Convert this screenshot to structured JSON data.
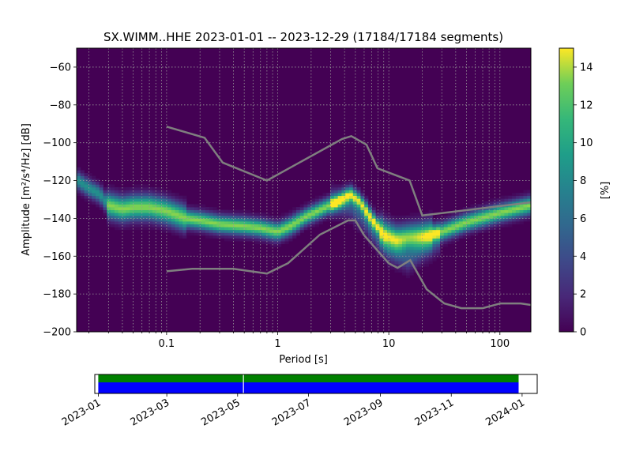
{
  "chart_data": [
    {
      "type": "heatmap",
      "title": "SX.WIMM..HHE   2023-01-01 -- 2023-12-29  (17184/17184 segments)",
      "xlabel": "Period [s]",
      "ylabel": "Amplitude [m²/s⁴/Hz] [dB]",
      "x_scale": "log",
      "xlim": [
        0.0155,
        190
      ],
      "ylim": [
        -200,
        -50
      ],
      "x_ticks": [
        {
          "value": 0.1,
          "label": "0.1"
        },
        {
          "value": 1,
          "label": "1"
        },
        {
          "value": 10,
          "label": "10"
        },
        {
          "value": 100,
          "label": "100"
        }
      ],
      "y_ticks": [
        {
          "value": -60,
          "label": "−60"
        },
        {
          "value": -80,
          "label": "−80"
        },
        {
          "value": -100,
          "label": "−100"
        },
        {
          "value": -120,
          "label": "−120"
        },
        {
          "value": -140,
          "label": "−140"
        },
        {
          "value": -160,
          "label": "−160"
        },
        {
          "value": -180,
          "label": "−180"
        },
        {
          "value": -200,
          "label": "−200"
        }
      ],
      "grid": true,
      "colorscale": "viridis",
      "colorbar": {
        "label": "[%]",
        "range": [
          0,
          15
        ],
        "ticks": [
          {
            "value": 0,
            "label": "0"
          },
          {
            "value": 2,
            "label": "2"
          },
          {
            "value": 4,
            "label": "4"
          },
          {
            "value": 6,
            "label": "6"
          },
          {
            "value": 8,
            "label": "8"
          },
          {
            "value": 10,
            "label": "10"
          },
          {
            "value": 12,
            "label": "12"
          },
          {
            "value": 14,
            "label": "14"
          }
        ]
      },
      "mode_curve": {
        "x": [
          0.016,
          0.02,
          0.025,
          0.03,
          0.04,
          0.05,
          0.07,
          0.1,
          0.15,
          0.2,
          0.3,
          0.5,
          0.7,
          1.0,
          1.3,
          1.8,
          2.5,
          3.5,
          4.5,
          5.5,
          7,
          9,
          12,
          15,
          20,
          30,
          50,
          100,
          190
        ],
        "y": [
          -120,
          -124,
          -127,
          -133,
          -135,
          -134,
          -134,
          -136,
          -140,
          -141,
          -143,
          -144,
          -145,
          -147,
          -144,
          -139,
          -135,
          -131,
          -127,
          -131,
          -140,
          -148,
          -151,
          -150,
          -149,
          -147,
          -142,
          -137,
          -133
        ]
      },
      "lower_mode_curve": {
        "x": [
          3,
          4.5,
          6,
          8,
          10,
          15,
          20,
          30
        ],
        "y": [
          -131,
          -133,
          -140,
          -150,
          -156,
          -161,
          -156,
          -150
        ]
      },
      "noise_model_high": {
        "x": [
          0.1,
          0.22,
          0.32,
          0.8,
          3.8,
          4.6,
          6.3,
          7.9,
          15.4,
          20,
          190
        ],
        "y": [
          -91.5,
          -97.4,
          -110.5,
          -120,
          -98,
          -96.5,
          -101,
          -113.5,
          -120,
          -138.5,
          -131.5
        ]
      },
      "noise_model_low": {
        "x": [
          0.1,
          0.17,
          0.4,
          0.8,
          1.24,
          2.4,
          4.3,
          5.0,
          6.0,
          10,
          12,
          15.6,
          21.9,
          31.6,
          45,
          70,
          101,
          154,
          190
        ],
        "y": [
          -168,
          -166.7,
          -166.7,
          -169.2,
          -163.7,
          -148.6,
          -141.1,
          -141.1,
          -149,
          -163.8,
          -166.2,
          -162.1,
          -177.5,
          -185,
          -187.5,
          -187.5,
          -185,
          -185,
          -185.8
        ]
      }
    },
    {
      "type": "timeline",
      "xlim": [
        "2022-12-29",
        "2024-01-14"
      ],
      "data_span": [
        "2023-01-01",
        "2023-12-29"
      ],
      "gaps": [
        "2023-05-06"
      ],
      "bar_colors": {
        "top": "#008000",
        "bottom": "#0000ff"
      },
      "x_ticks": [
        "2023-01",
        "2023-03",
        "2023-05",
        "2023-07",
        "2023-09",
        "2023-11",
        "2024-01"
      ],
      "x_tick_dates": [
        "2023-01-01",
        "2023-03-01",
        "2023-05-01",
        "2023-07-01",
        "2023-09-01",
        "2023-11-01",
        "2024-01-01"
      ]
    }
  ]
}
